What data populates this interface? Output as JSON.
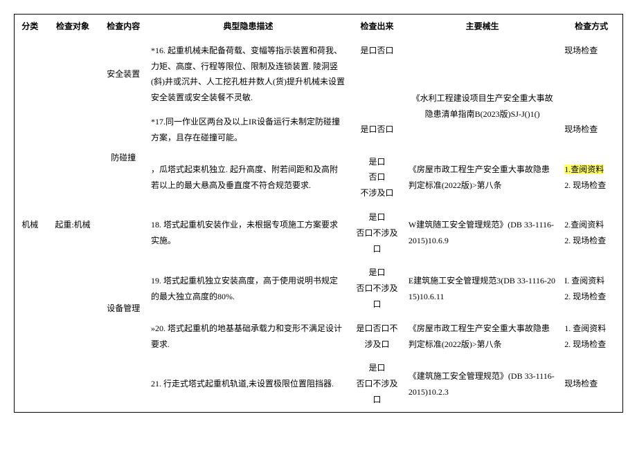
{
  "headers": {
    "category": "分类",
    "object": "检查对象",
    "item": "检查内容",
    "desc": "典型隐患描述",
    "judge": "检查出来",
    "basis": "主要械生",
    "method": "检查方式"
  },
  "category": "机械",
  "object": "起重:机械",
  "items": {
    "safety_device": "安全装置",
    "anti_collision": "防碰撞",
    "equip_mgmt": "设备管理"
  },
  "rows": {
    "r16": {
      "desc": "*16. 起重机械未配备荷载、变幅等指示装置和荷我、力矩、高度、行程等限位、限制及连锁装置. 陵洞竖(斜)井或沉井、人工挖孔桩井数人(货)提升机械未设置安全装置或安全装餐不灵敏.",
      "judge": "是口否口",
      "basis": "",
      "method": "现场检查"
    },
    "note1": "《水利工程建设项目生产安全重大事故隐患清单指南B(2023版)SJ-J()1()",
    "r17": {
      "desc": "*17.同一作业区两台及以上IR设备运行未制定防碰撞方案，且存在碰撞可能。",
      "judge": "是口否口",
      "basis": "",
      "method": "现场检查"
    },
    "r17b": {
      "desc": "，瓜塔式起束机独立. 起升高度、附若间距和及高附若以上的最大悬高及垂直度不符合规范要求.",
      "judge": "是口\n否口\n不涉及口",
      "basis": "《房屋市政工程生产安全重大事故隐患判定标准(2022版)>第八条",
      "method1": "1.查阅资料",
      "method2": "2. 现场检查"
    },
    "r18": {
      "desc": "18. 塔式起重机安装作业，未根据专项施工方案要求实施。",
      "judge": "是口\n否口不涉及口",
      "basis": "W建筑随工安全管理规范》(DB 33-1116-2015)10.6.9",
      "method": "2.查阅资料\n2. 现场检查"
    },
    "r19": {
      "desc": "19. 塔式起重机独立安装高度，高于使用说明书规定的最大独立高度的80%.",
      "judge": "是口\n否口不涉及口",
      "basis": "E建筑施工安全管理规范3(DB 33-1116-2015)10.6.11",
      "method": "I. 查阅资料\n2. 现场检查"
    },
    "r20": {
      "desc": "»20. 塔式起重机的地基基础承载力和变形不满足设计要求.",
      "judge": "是口否口不涉及口",
      "basis": "《房屋市政工程生产安全重大事故隐患判定标准(2022版)>第八条",
      "method": "1. 查阅资料\n2. 现场检查"
    },
    "r21": {
      "desc": "21. 行走式塔式起重机轨道,未设置极限位置阻挡器.",
      "judge": "是口\n否口不涉及口",
      "basis": "《建筑施工安全管理规范》(DB 33-1116-2015)10.2.3",
      "method": "现场检查"
    }
  }
}
